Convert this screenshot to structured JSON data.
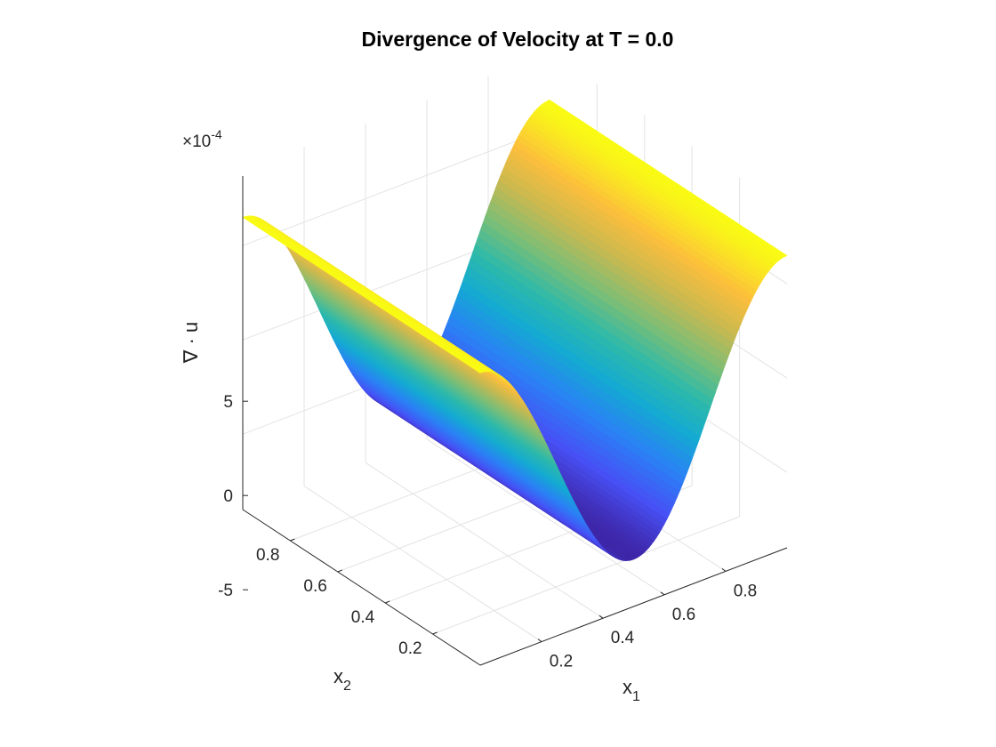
{
  "chart_data": {
    "type": "surface",
    "title": "Divergence of Velocity  at T = 0.0",
    "xlabel": {
      "main": "x",
      "sub": "1"
    },
    "ylabel": {
      "main": "x",
      "sub": "2"
    },
    "zlabel": "∇ · u",
    "z_multiplier": {
      "prefix": "×10",
      "exp": "-4"
    },
    "xlim": [
      0,
      1
    ],
    "ylim": [
      0,
      1
    ],
    "zlim": [
      -9,
      9
    ],
    "x_ticks": [
      {
        "value": 0.2,
        "label": "0.2"
      },
      {
        "value": 0.4,
        "label": "0.4"
      },
      {
        "value": 0.6,
        "label": "0.6"
      },
      {
        "value": 0.8,
        "label": "0.8"
      }
    ],
    "y_ticks": [
      {
        "value": 0.2,
        "label": "0.2"
      },
      {
        "value": 0.4,
        "label": "0.4"
      },
      {
        "value": 0.6,
        "label": "0.6"
      },
      {
        "value": 0.8,
        "label": "0.8"
      }
    ],
    "z_ticks": [
      {
        "value": -5,
        "label": "-5"
      },
      {
        "value": 0,
        "label": "0"
      },
      {
        "value": 5,
        "label": "5"
      }
    ],
    "surface": {
      "function": "z = A * cos(2*pi*x1), constant along x2",
      "amplitude_e4": 6.5
    },
    "colormap": "parula",
    "grid": true
  }
}
